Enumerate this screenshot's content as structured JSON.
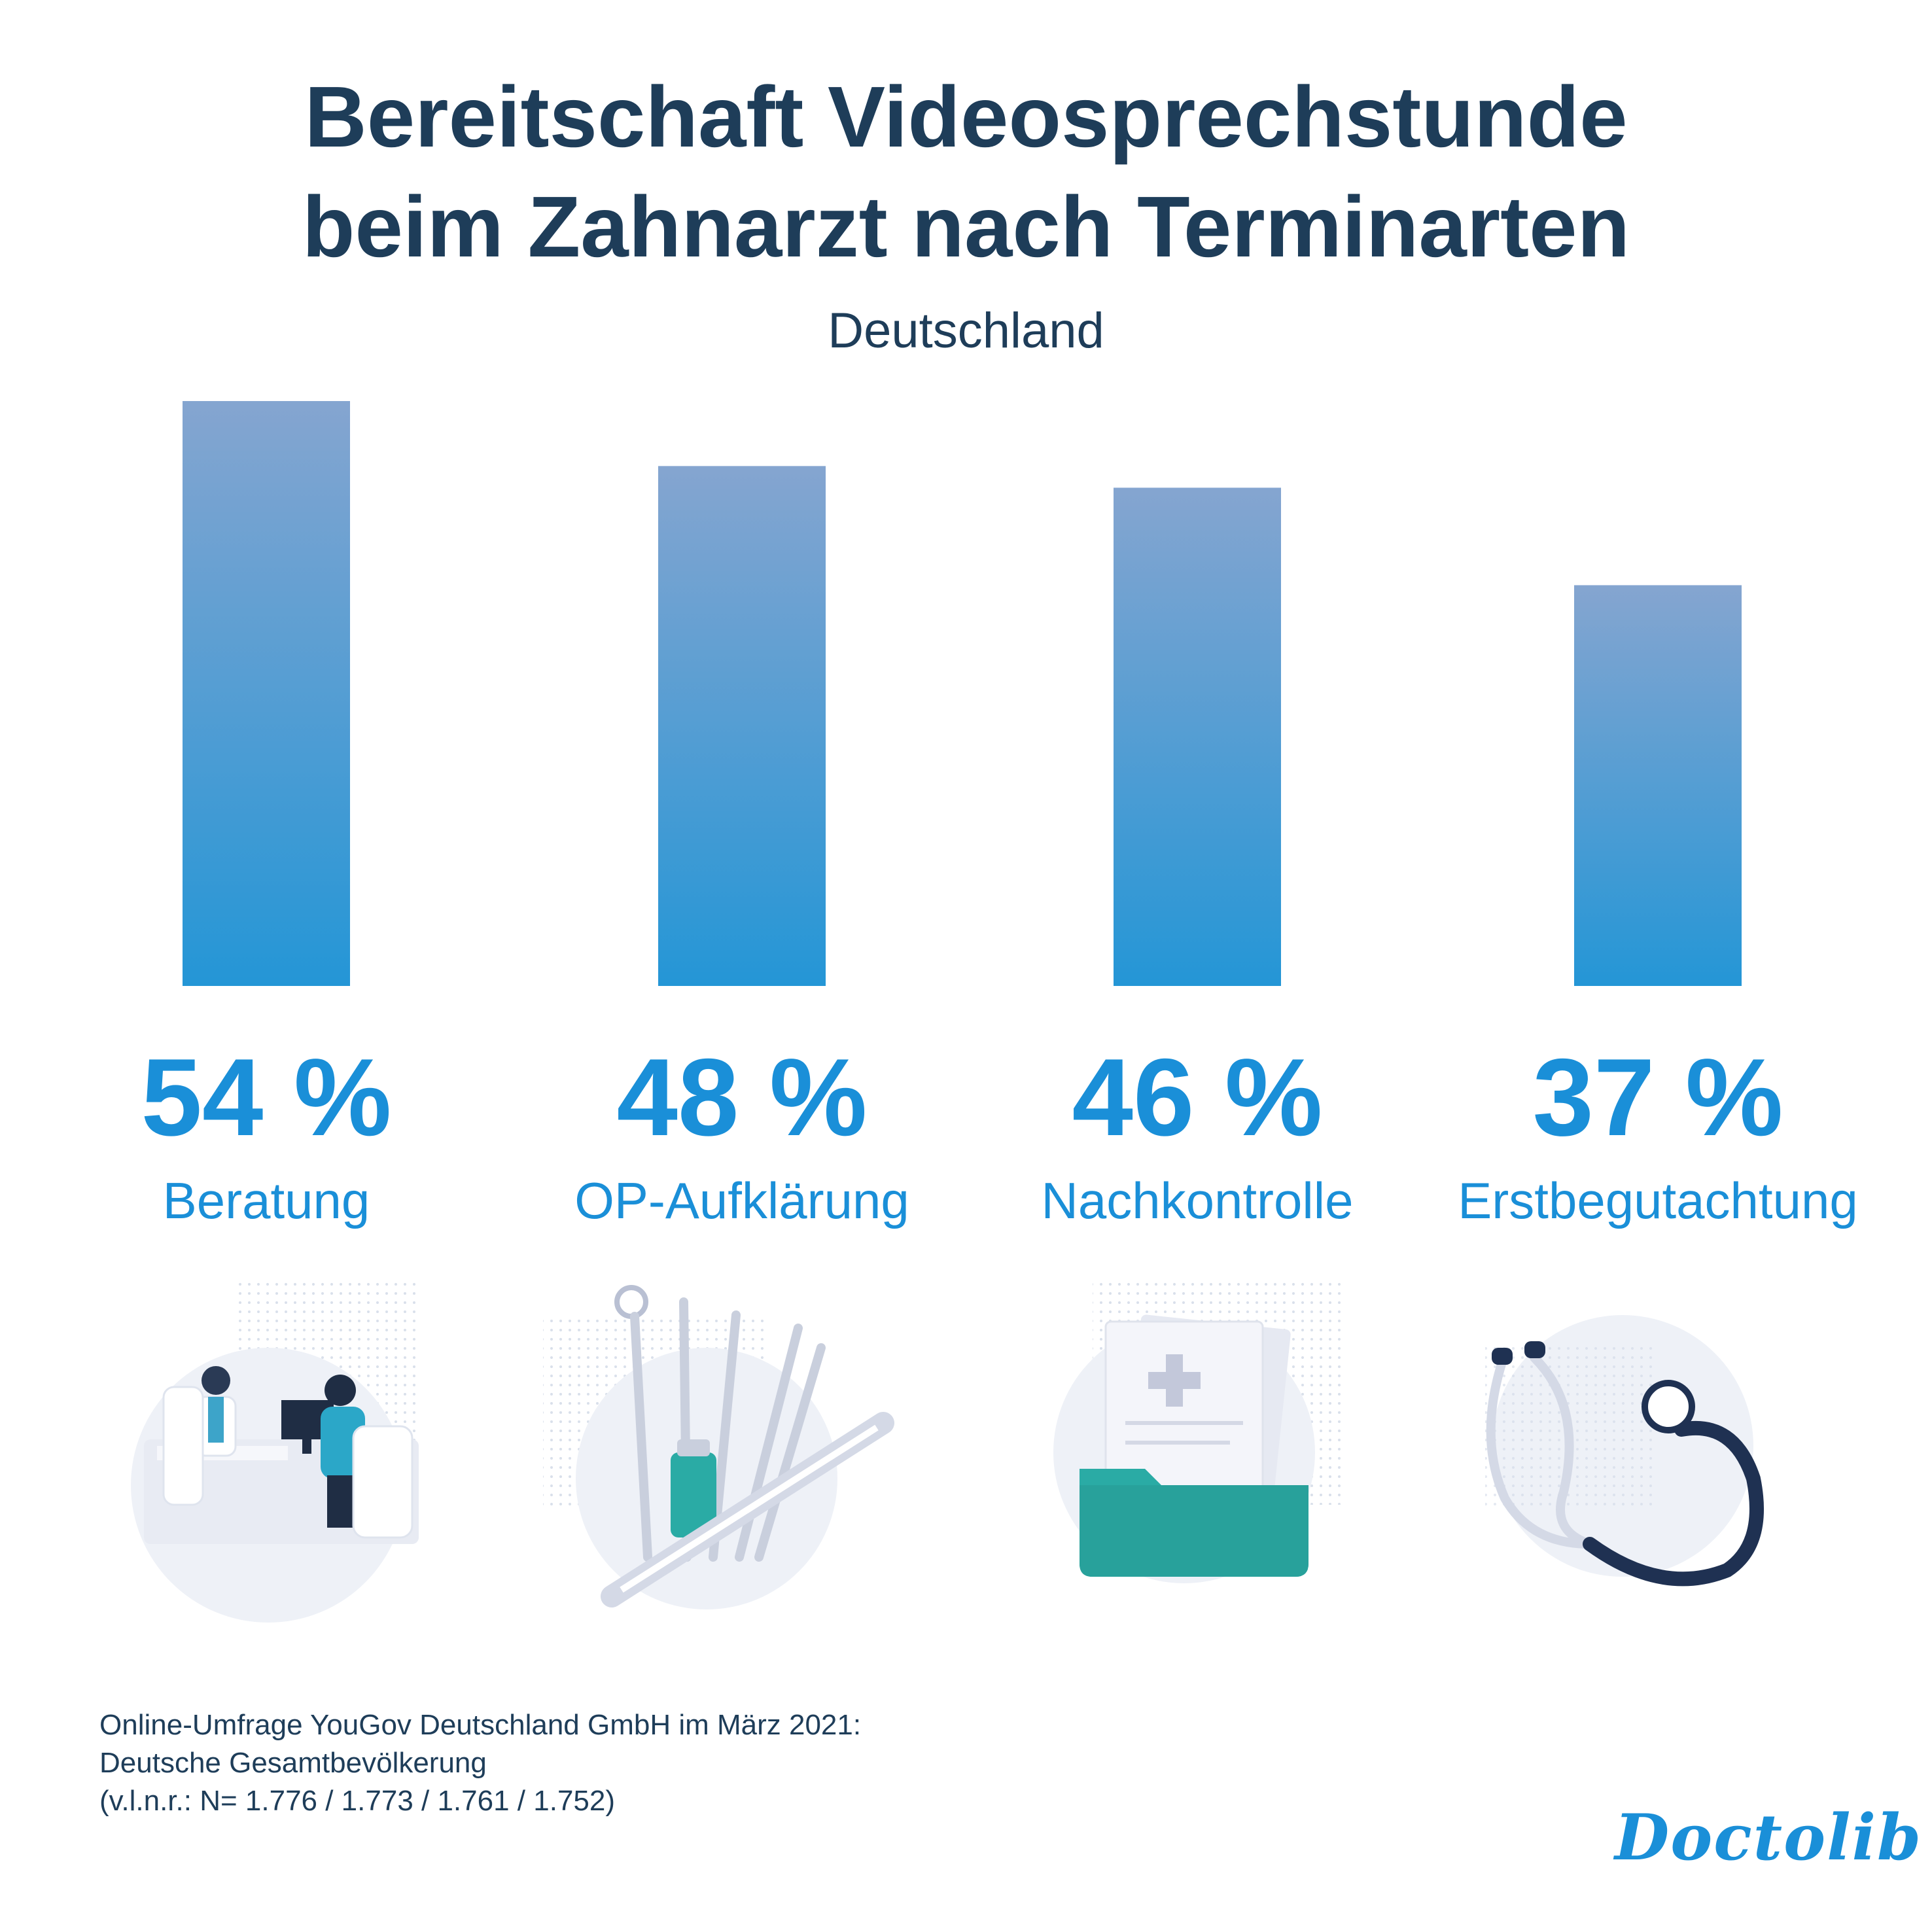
{
  "title_lines": [
    "Bereitschaft Videosprechstunde",
    "beim Zahnarzt nach Terminarten"
  ],
  "subtitle": "Deutschland",
  "chart_data": {
    "type": "bar",
    "title": "Bereitschaft Videosprechstunde beim Zahnarzt nach Terminarten",
    "subtitle": "Deutschland",
    "categories": [
      "Beratung",
      "OP-Aufklärung",
      "Nachkontrolle",
      "Erstbegutachtung"
    ],
    "values": [
      54,
      48,
      46,
      37
    ],
    "value_labels": [
      "54 %",
      "48 %",
      "46 %",
      "37 %"
    ],
    "unit": "%",
    "ylim": [
      0,
      54
    ],
    "grid": false,
    "legend": "none",
    "bar_gradient": [
      "#85a5d0",
      "#2496d6"
    ],
    "label_color": "#1a8fd8"
  },
  "icons": [
    "doctor-consultation-icon",
    "dental-instruments-icon",
    "medical-records-folder-icon",
    "stethoscope-icon"
  ],
  "source_lines": [
    "Online-Umfrage YouGov Deutschland GmbH im März 2021:",
    "Deutsche Gesamtbevölkerung",
    "(v.l.n.r.: N= 1.776 / 1.773 / 1.761 / 1.752)"
  ],
  "logo_text": "Doctolib",
  "colors": {
    "title": "#1e3d59",
    "accent": "#1a8fd8",
    "teal": "#2aaba5"
  }
}
